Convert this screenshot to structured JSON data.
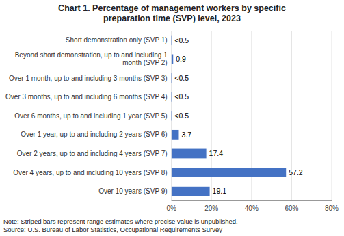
{
  "chart_data": {
    "type": "bar",
    "orientation": "horizontal",
    "title": "Chart 1. Percentage of management workers by specific\npreparation time (SVP) level, 2023",
    "categories": [
      "Short demonstration only (SVP 1)",
      "Beyond short demonstration, up to and including 1\nmonth (SVP 2)",
      "Over 1 month, up to and including 3 months (SVP 3)",
      "Over 3 months, up to and including 6 months (SVP 4)",
      "Over 6 months, up to and including 1 year (SVP 5)",
      "Over 1 year, up to and including 2 years (SVP 6)",
      "Over 2 years, up to and including 4 years (SVP 7)",
      "Over 4 years, up to and including 10 years (SVP 8)",
      "Over 10 years (SVP 9)"
    ],
    "values": [
      0.25,
      0.9,
      0.25,
      0.25,
      0.25,
      3.7,
      17.4,
      57.2,
      19.1
    ],
    "value_labels": [
      "<0.5",
      "0.9",
      "<0.5",
      "<0.5",
      "<0.5",
      "3.7",
      "17.4",
      "57.2",
      "19.1"
    ],
    "range_estimate": [
      true,
      false,
      true,
      true,
      true,
      false,
      false,
      false,
      false
    ],
    "data_labels": true,
    "color": "#4472C4",
    "xlim": [
      0,
      80
    ],
    "xticks": [
      {
        "value": 0,
        "label": "0%"
      },
      {
        "value": 20,
        "label": "20%"
      },
      {
        "value": 40,
        "label": "40%"
      },
      {
        "value": 60,
        "label": "60%"
      },
      {
        "value": 80,
        "label": "80%"
      }
    ],
    "grid": true,
    "note": "Note: Striped bars represent range estimates where precise value is unpublished.\nSource: U.S. Bureau of Labor Statistics, Occupational Requirements Survey"
  }
}
